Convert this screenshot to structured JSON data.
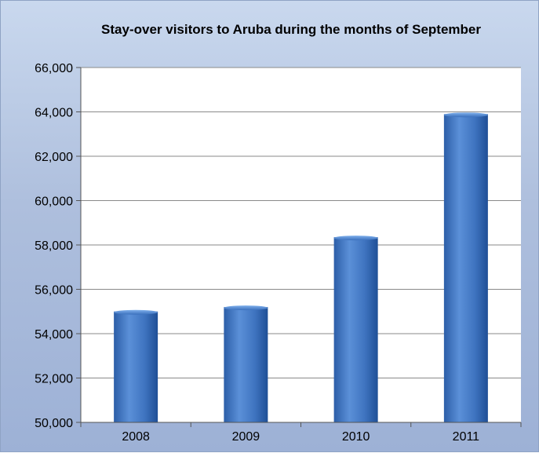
{
  "chart_data": {
    "type": "bar",
    "title": "Stay-over visitors to Aruba during the months of September",
    "categories": [
      "2008",
      "2009",
      "2010",
      "2011"
    ],
    "values": [
      55000,
      55200,
      58350,
      63900
    ],
    "ylim": [
      50000,
      66000
    ],
    "yticks": [
      50000,
      52000,
      54000,
      56000,
      58000,
      60000,
      62000,
      64000,
      66000
    ],
    "ytick_labels": [
      "50,000",
      "52,000",
      "54,000",
      "56,000",
      "58,000",
      "60,000",
      "62,000",
      "64,000",
      "66,000"
    ],
    "grid": true,
    "xlabel": "",
    "ylabel": "",
    "colors": {
      "bar": "#3f74c0",
      "bar_light": "#5a8fd6",
      "bar_dark": "#1f4f96",
      "background": "#aebfdd"
    }
  }
}
